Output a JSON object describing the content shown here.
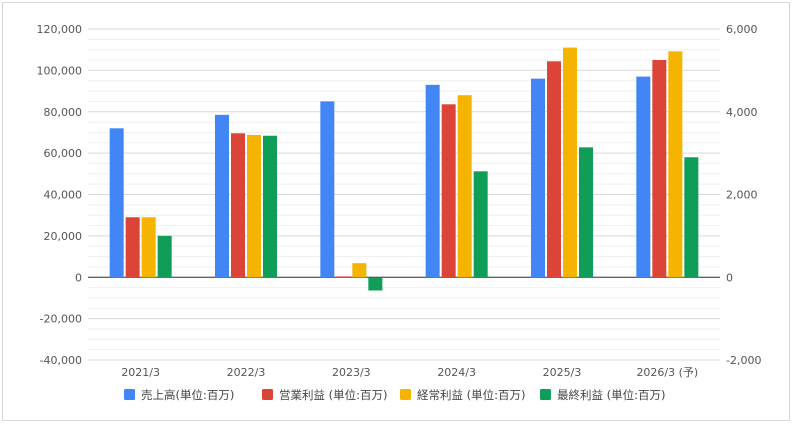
{
  "chart_data": {
    "type": "bar",
    "title": "",
    "xlabel": "",
    "ylabel": "",
    "categories": [
      "2021/3",
      "2022/3",
      "2023/3",
      "2024/3",
      "2025/3",
      "2026/3 (予)"
    ],
    "ylim_left": [
      -40000,
      120000
    ],
    "ylim_right": [
      -2000,
      6000
    ],
    "left_ticks": [
      "120,000",
      "100,000",
      "80,000",
      "60,000",
      "40,000",
      "20,000",
      "0",
      "-20,000",
      "-40,000"
    ],
    "left_tick_values": [
      120000,
      100000,
      80000,
      60000,
      40000,
      20000,
      0,
      -20000,
      -40000
    ],
    "right_ticks": [
      "6,000",
      "4,000",
      "2,000",
      "0",
      "-2,000"
    ],
    "right_tick_values": [
      6000,
      4000,
      2000,
      0,
      -2000
    ],
    "grid": true,
    "legend_position": "bottom",
    "series": [
      {
        "name": "売上高(単位:百万)",
        "axis": "left",
        "color": "#4285f4",
        "values": [
          72000,
          78500,
          85000,
          93000,
          96000,
          97000
        ]
      },
      {
        "name": "営業利益 (単位:百万)",
        "axis": "right",
        "color": "#db4437",
        "values": [
          1450,
          3480,
          20,
          4180,
          5220,
          5250
        ]
      },
      {
        "name": "経常利益 (単位:百万)",
        "axis": "right",
        "color": "#f4b400",
        "values": [
          1450,
          3440,
          340,
          4400,
          5550,
          5460
        ]
      },
      {
        "name": "最終利益 (単位:百万)",
        "axis": "right",
        "color": "#0f9d58",
        "values": [
          1000,
          3420,
          -320,
          2560,
          3140,
          2900
        ]
      }
    ]
  }
}
